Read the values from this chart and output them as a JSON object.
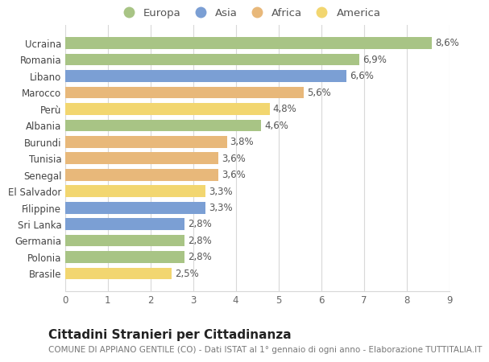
{
  "countries": [
    "Ucraina",
    "Romania",
    "Libano",
    "Marocco",
    "Perù",
    "Albania",
    "Burundi",
    "Tunisia",
    "Senegal",
    "El Salvador",
    "Filippine",
    "Sri Lanka",
    "Germania",
    "Polonia",
    "Brasile"
  ],
  "values": [
    8.6,
    6.9,
    6.6,
    5.6,
    4.8,
    4.6,
    3.8,
    3.6,
    3.6,
    3.3,
    3.3,
    2.8,
    2.8,
    2.8,
    2.5
  ],
  "continents": [
    "Europa",
    "Europa",
    "Asia",
    "Africa",
    "America",
    "Europa",
    "Africa",
    "Africa",
    "Africa",
    "America",
    "Asia",
    "Asia",
    "Europa",
    "Europa",
    "America"
  ],
  "colors": {
    "Europa": "#a8c485",
    "Asia": "#7b9fd4",
    "Africa": "#e8b87a",
    "America": "#f2d670"
  },
  "legend_order": [
    "Europa",
    "Asia",
    "Africa",
    "America"
  ],
  "xlim": [
    0,
    9
  ],
  "xticks": [
    0,
    1,
    2,
    3,
    4,
    5,
    6,
    7,
    8,
    9
  ],
  "title": "Cittadini Stranieri per Cittadinanza",
  "subtitle": "COMUNE DI APPIANO GENTILE (CO) - Dati ISTAT al 1° gennaio di ogni anno - Elaborazione TUTTITALIA.IT",
  "background_color": "#ffffff",
  "grid_color": "#d8d8d8",
  "bar_height": 0.72,
  "label_fontsize": 8.5,
  "title_fontsize": 11,
  "subtitle_fontsize": 7.5,
  "tick_fontsize": 8.5,
  "legend_fontsize": 9.5
}
